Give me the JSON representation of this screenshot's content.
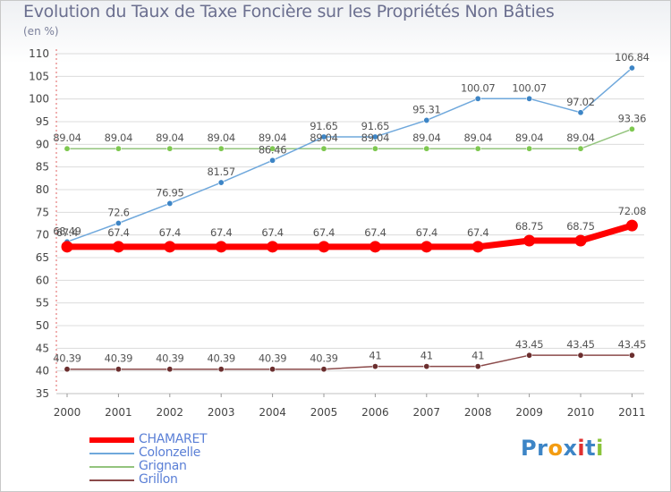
{
  "header": {
    "title": "Evolution du Taux de Taxe Foncière sur les Propriétés Non Bâties",
    "unit": "(en %)"
  },
  "logo": {
    "text": "Proxiti"
  },
  "chart_data": {
    "type": "line",
    "title": "Evolution du Taux de Taxe Foncière sur les Propriétés Non Bâties",
    "ylabel": "(en %)",
    "xlabel": "",
    "x": [
      "2000",
      "2001",
      "2002",
      "2003",
      "2004",
      "2005",
      "2006",
      "2007",
      "2008",
      "2009",
      "2010",
      "2011"
    ],
    "y_ticks": [
      "35",
      "40",
      "45",
      "50",
      "55",
      "60",
      "65",
      "70",
      "75",
      "80",
      "85",
      "90",
      "95",
      "100",
      "105",
      "110"
    ],
    "ylim": [
      35,
      110
    ],
    "grid": "horizontal",
    "legend_position": "bottom-left",
    "series": [
      {
        "name": "CHAMARET",
        "color": "#ff0000",
        "emphasis": true,
        "values": [
          67.4,
          67.4,
          67.4,
          67.4,
          67.4,
          67.4,
          67.4,
          67.4,
          67.4,
          68.75,
          68.75,
          72.08
        ],
        "labels": [
          "67.4",
          "67.4",
          "67.4",
          "67.4",
          "67.4",
          "67.4",
          "67.4",
          "67.4",
          "67.4",
          "68.75",
          "68.75",
          "72.08"
        ]
      },
      {
        "name": "Colonzelle",
        "color": "#6fa8dc",
        "marker_color": "#3d85c6",
        "values": [
          68.49,
          72.6,
          76.95,
          81.57,
          86.46,
          91.65,
          91.65,
          95.31,
          100.07,
          100.07,
          97.02,
          106.84
        ],
        "labels": [
          "68.49",
          "72.6",
          "76.95",
          "81.57",
          "86.46",
          "91.65",
          "91.65",
          "95.31",
          "100.07",
          "100.07",
          "97.02",
          "106.84"
        ]
      },
      {
        "name": "Grignan",
        "color": "#93c47d",
        "marker_color": "#7ec850",
        "values": [
          89.04,
          89.04,
          89.04,
          89.04,
          89.04,
          89.04,
          89.04,
          89.04,
          89.04,
          89.04,
          89.04,
          93.36
        ],
        "labels": [
          "89.04",
          "89.04",
          "89.04",
          "89.04",
          "89.04",
          "89.04",
          "89.04",
          "89.04",
          "89.04",
          "89.04",
          "89.04",
          "93.36"
        ]
      },
      {
        "name": "Grillon",
        "color": "#8b4a4a",
        "marker_color": "#6b2e2e",
        "values": [
          40.39,
          40.39,
          40.39,
          40.39,
          40.39,
          40.39,
          41,
          41,
          41,
          43.45,
          43.45,
          43.45
        ],
        "labels": [
          "40.39",
          "40.39",
          "40.39",
          "40.39",
          "40.39",
          "40.39",
          "41",
          "41",
          "41",
          "43.45",
          "43.45",
          "43.45"
        ]
      }
    ]
  }
}
